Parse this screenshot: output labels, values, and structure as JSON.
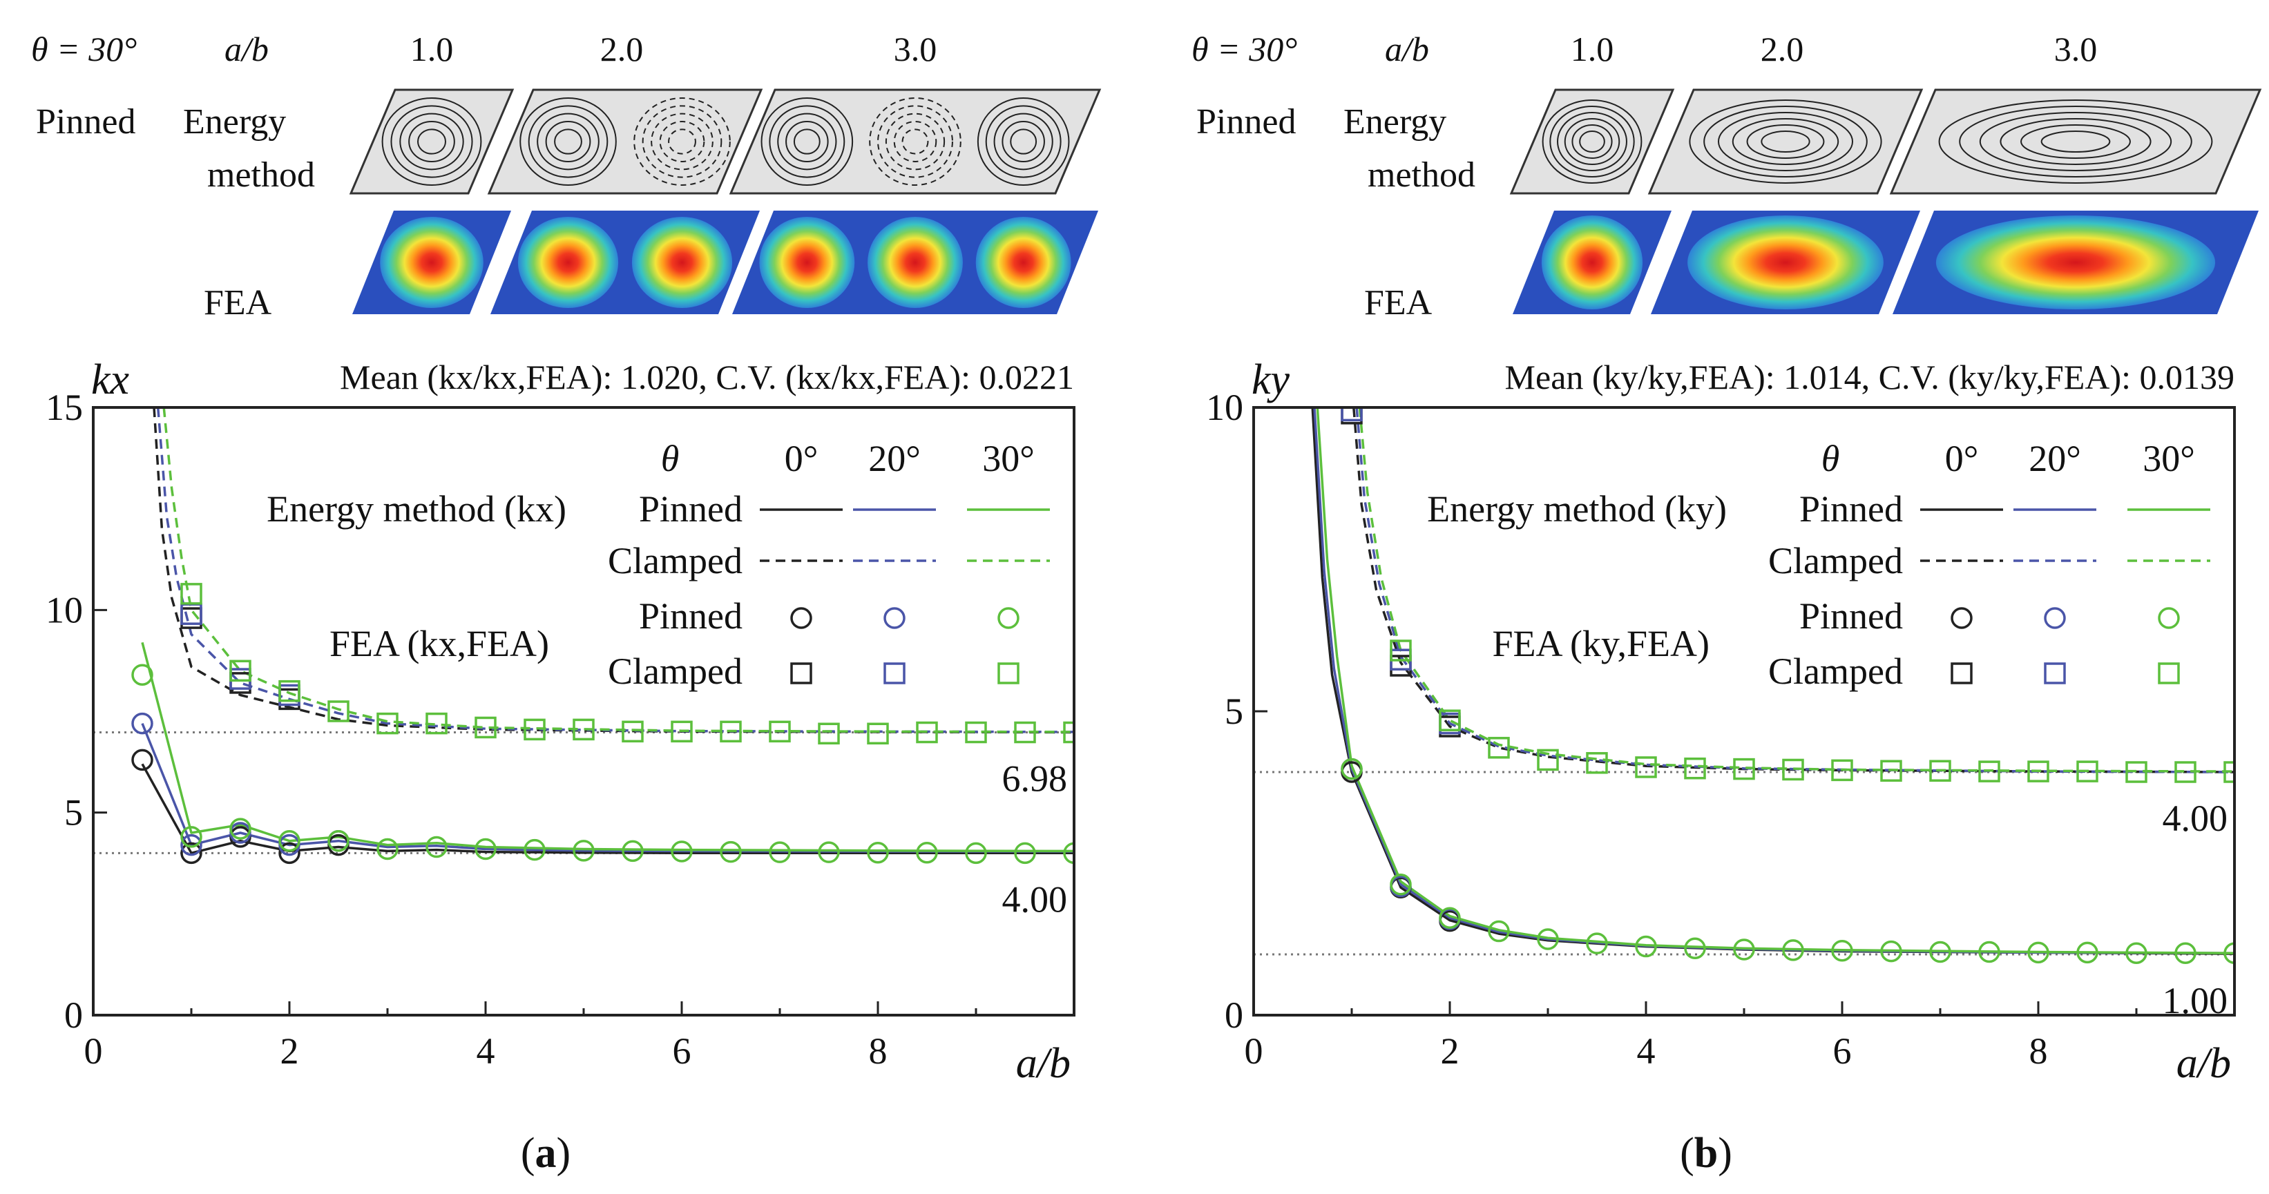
{
  "colors": {
    "theta0": "#222222",
    "theta20": "#4a55a8",
    "theta30": "#5cbf3c",
    "ref_line": "#777777",
    "frame": "#222222"
  },
  "chart_data": [
    {
      "panel_label": "a",
      "type": "line",
      "top_header": {
        "theta_label": "θ = 30°",
        "ab_label": "a/b",
        "ab_values": [
          "1.0",
          "2.0",
          "3.0"
        ],
        "row1_label_a": "Pinned",
        "row1_label_b": "Energy",
        "row1_label_c": "method",
        "row2_label": "FEA",
        "mode_pattern": "alternating"
      },
      "ylabel": "kx",
      "xlabel": "a/b",
      "title": "Mean (kx/kx,FEA): 1.020, C.V. (kx/kx,FEA): 0.0221",
      "xlim": [
        0,
        10
      ],
      "ylim": [
        0,
        15
      ],
      "xticks": [
        "0",
        "2",
        "4",
        "6",
        "8"
      ],
      "yticks": [
        "0",
        "5",
        "10",
        "15"
      ],
      "ref_lines": [
        {
          "value": 6.98,
          "label": "6.98"
        },
        {
          "value": 4.0,
          "label": "4.00"
        }
      ],
      "legend": {
        "theta_header": "θ",
        "angles": [
          "0°",
          "20°",
          "30°"
        ],
        "energy_label": "Energy method (kx)",
        "fea_label": "FEA (kx,FEA)",
        "pinned": "Pinned",
        "clamped": "Clamped"
      },
      "series": [
        {
          "name": "Energy method, Pinned, θ=0°",
          "angle": 0,
          "style": "solid",
          "x": [
            0.5,
            1.0,
            1.5,
            2.0,
            2.5,
            3.0,
            3.5,
            4.0,
            5.0,
            6.0,
            8.0,
            10.0
          ],
          "y": [
            6.2,
            4.0,
            4.3,
            4.05,
            4.15,
            4.05,
            4.08,
            4.03,
            4.01,
            4.0,
            4.0,
            4.0
          ]
        },
        {
          "name": "Energy method, Pinned, θ=20°",
          "angle": 20,
          "style": "solid",
          "x": [
            0.5,
            1.0,
            1.5,
            2.0,
            2.5,
            3.0,
            3.5,
            4.0,
            5.0,
            6.0,
            8.0,
            10.0
          ],
          "y": [
            7.2,
            4.2,
            4.5,
            4.2,
            4.3,
            4.15,
            4.18,
            4.1,
            4.06,
            4.05,
            4.04,
            4.04
          ]
        },
        {
          "name": "Energy method, Pinned, θ=30°",
          "angle": 30,
          "style": "solid",
          "x": [
            0.5,
            1.0,
            1.5,
            2.0,
            2.5,
            3.0,
            3.5,
            4.0,
            5.0,
            6.0,
            8.0,
            10.0
          ],
          "y": [
            9.2,
            4.5,
            4.7,
            4.3,
            4.4,
            4.2,
            4.25,
            4.15,
            4.1,
            4.08,
            4.06,
            4.05
          ]
        },
        {
          "name": "Energy method, Clamped, θ=0°",
          "angle": 0,
          "style": "dashed",
          "x": [
            0.62,
            0.7,
            0.8,
            1.0,
            1.5,
            2.0,
            2.5,
            3.0,
            4.0,
            6.0,
            8.0,
            10.0
          ],
          "y": [
            15,
            12.0,
            10.3,
            8.6,
            7.9,
            7.6,
            7.3,
            7.15,
            7.05,
            7.0,
            6.99,
            6.98
          ]
        },
        {
          "name": "Energy method, Clamped, θ=20°",
          "angle": 20,
          "style": "dashed",
          "x": [
            0.66,
            0.75,
            0.85,
            1.0,
            1.5,
            2.0,
            2.5,
            3.0,
            4.0,
            6.0,
            8.0,
            10.0
          ],
          "y": [
            15,
            12.3,
            10.8,
            9.4,
            8.2,
            7.8,
            7.45,
            7.2,
            7.07,
            7.01,
            7.0,
            6.99
          ]
        },
        {
          "name": "Energy method, Clamped, θ=30°",
          "angle": 30,
          "style": "dashed",
          "x": [
            0.72,
            0.8,
            0.9,
            1.0,
            1.5,
            2.0,
            2.5,
            3.0,
            4.0,
            6.0,
            8.0,
            10.0
          ],
          "y": [
            15,
            13.0,
            11.3,
            10.0,
            8.5,
            7.95,
            7.55,
            7.25,
            7.1,
            7.02,
            7.0,
            6.99
          ]
        },
        {
          "name": "FEA, Pinned, θ=0°",
          "angle": 0,
          "marker": "circle",
          "x": [
            0.5,
            1.0,
            1.5,
            2.0,
            2.5
          ],
          "y": [
            6.3,
            4.0,
            4.4,
            4.0,
            4.2
          ]
        },
        {
          "name": "FEA, Pinned, θ=20°",
          "angle": 20,
          "marker": "circle",
          "x": [
            0.5,
            1.0,
            1.5,
            2.0,
            2.5
          ],
          "y": [
            7.2,
            4.2,
            4.5,
            4.2,
            4.3
          ]
        },
        {
          "name": "FEA, Pinned, θ=30°",
          "angle": 30,
          "marker": "circle",
          "x": [
            0.5,
            1.0,
            1.5,
            2.0,
            2.5,
            3.0,
            3.5,
            4.0,
            4.5,
            5.0,
            5.5,
            6.0,
            6.5,
            7.0,
            7.5,
            8.0,
            8.5,
            9.0,
            9.5,
            10.0
          ],
          "y": [
            8.4,
            4.4,
            4.6,
            4.3,
            4.3,
            4.1,
            4.15,
            4.1,
            4.08,
            4.06,
            4.05,
            4.04,
            4.03,
            4.02,
            4.02,
            4.01,
            4.01,
            4.0,
            4.0,
            4.0
          ]
        },
        {
          "name": "FEA, Clamped, θ=0°",
          "angle": 0,
          "marker": "square",
          "x": [
            1.0,
            1.5,
            2.0
          ],
          "y": [
            9.8,
            8.2,
            7.8
          ]
        },
        {
          "name": "FEA, Clamped, θ=20°",
          "angle": 20,
          "marker": "square",
          "x": [
            1.0,
            1.5,
            2.0
          ],
          "y": [
            9.9,
            8.3,
            7.9
          ]
        },
        {
          "name": "FEA, Clamped, θ=30°",
          "angle": 30,
          "marker": "square",
          "x": [
            1.0,
            1.5,
            2.0,
            2.5,
            3.0,
            3.5,
            4.0,
            4.5,
            5.0,
            5.5,
            6.0,
            6.5,
            7.0,
            7.5,
            8.0,
            8.5,
            9.0,
            9.5,
            10.0
          ],
          "y": [
            10.4,
            8.5,
            8.0,
            7.5,
            7.2,
            7.2,
            7.1,
            7.05,
            7.05,
            7.0,
            7.0,
            7.0,
            7.0,
            6.95,
            6.95,
            6.98,
            6.98,
            6.98,
            6.98
          ]
        }
      ]
    },
    {
      "panel_label": "b",
      "type": "line",
      "top_header": {
        "theta_label": "θ = 30°",
        "ab_label": "a/b",
        "ab_values": [
          "1.0",
          "2.0",
          "3.0"
        ],
        "row1_label_a": "Pinned",
        "row1_label_b": "Energy",
        "row1_label_c": "method",
        "row2_label": "FEA",
        "mode_pattern": "single"
      },
      "ylabel": "ky",
      "xlabel": "a/b",
      "title": "Mean (ky/ky,FEA): 1.014, C.V. (ky/ky,FEA): 0.0139",
      "xlim": [
        0,
        10
      ],
      "ylim": [
        0,
        10
      ],
      "xticks": [
        "0",
        "2",
        "4",
        "6",
        "8"
      ],
      "yticks": [
        "0",
        "5",
        "10"
      ],
      "ref_lines": [
        {
          "value": 4.0,
          "label": "4.00"
        },
        {
          "value": 1.0,
          "label": "1.00"
        }
      ],
      "legend": {
        "theta_header": "θ",
        "angles": [
          "0°",
          "20°",
          "30°"
        ],
        "energy_label": "Energy method (ky)",
        "fea_label": "FEA (ky,FEA)",
        "pinned": "Pinned",
        "clamped": "Clamped"
      },
      "series": [
        {
          "name": "Energy method, Pinned, θ=0°",
          "angle": 0,
          "style": "solid",
          "x": [
            0.6,
            0.7,
            0.8,
            1.0,
            1.5,
            2.0,
            2.5,
            3.0,
            4.0,
            5.0,
            6.0,
            8.0,
            10.0
          ],
          "y": [
            10,
            7.2,
            5.6,
            4.0,
            2.1,
            1.56,
            1.34,
            1.23,
            1.13,
            1.08,
            1.05,
            1.03,
            1.01
          ]
        },
        {
          "name": "Energy method, Pinned, θ=20°",
          "angle": 20,
          "style": "solid",
          "x": [
            0.62,
            0.72,
            0.82,
            1.0,
            1.5,
            2.0,
            2.5,
            3.0,
            4.0,
            5.0,
            6.0,
            8.0,
            10.0
          ],
          "y": [
            10,
            7.3,
            5.7,
            4.05,
            2.15,
            1.6,
            1.37,
            1.25,
            1.14,
            1.09,
            1.06,
            1.03,
            1.02
          ]
        },
        {
          "name": "Energy method, Pinned, θ=30°",
          "angle": 30,
          "style": "solid",
          "x": [
            0.65,
            0.75,
            0.85,
            1.0,
            1.5,
            2.0,
            2.5,
            3.0,
            4.0,
            5.0,
            6.0,
            8.0,
            10.0
          ],
          "y": [
            10,
            7.5,
            5.9,
            4.1,
            2.2,
            1.63,
            1.4,
            1.27,
            1.15,
            1.1,
            1.07,
            1.04,
            1.02
          ]
        },
        {
          "name": "Energy method, Clamped, θ=0°",
          "angle": 0,
          "style": "dashed",
          "x": [
            1.02,
            1.1,
            1.25,
            1.5,
            2.0,
            2.5,
            3.0,
            4.0,
            5.0,
            6.0,
            8.0,
            10.0
          ],
          "y": [
            10,
            8.4,
            7.0,
            5.8,
            4.75,
            4.4,
            4.25,
            4.1,
            4.05,
            4.03,
            4.01,
            4.0
          ]
        },
        {
          "name": "Energy method, Clamped, θ=20°",
          "angle": 20,
          "style": "dashed",
          "x": [
            1.05,
            1.13,
            1.28,
            1.5,
            2.0,
            2.5,
            3.0,
            4.0,
            5.0,
            6.0,
            8.0,
            10.0
          ],
          "y": [
            10,
            8.5,
            7.1,
            5.9,
            4.8,
            4.42,
            4.27,
            4.12,
            4.06,
            4.04,
            4.01,
            4.0
          ]
        },
        {
          "name": "Energy method, Clamped, θ=30°",
          "angle": 30,
          "style": "dashed",
          "x": [
            1.08,
            1.16,
            1.3,
            1.5,
            2.0,
            2.5,
            3.0,
            4.0,
            5.0,
            6.0,
            8.0,
            10.0
          ],
          "y": [
            10,
            8.6,
            7.2,
            6.0,
            4.85,
            4.45,
            4.3,
            4.13,
            4.07,
            4.04,
            4.02,
            4.01
          ]
        },
        {
          "name": "FEA, Pinned, θ=0°",
          "angle": 0,
          "marker": "circle",
          "x": [
            1.0,
            1.5,
            2.0
          ],
          "y": [
            4.0,
            2.1,
            1.55
          ]
        },
        {
          "name": "FEA, Pinned, θ=20°",
          "angle": 20,
          "marker": "circle",
          "x": [
            1.0,
            1.5,
            2.0
          ],
          "y": [
            4.05,
            2.12,
            1.58
          ]
        },
        {
          "name": "FEA, Pinned, θ=30°",
          "angle": 30,
          "marker": "circle",
          "x": [
            1.0,
            1.5,
            2.0,
            2.5,
            3.0,
            3.5,
            4.0,
            4.5,
            5.0,
            5.5,
            6.0,
            6.5,
            7.0,
            7.5,
            8.0,
            8.5,
            9.0,
            9.5,
            10.0
          ],
          "y": [
            4.05,
            2.15,
            1.6,
            1.38,
            1.25,
            1.18,
            1.13,
            1.1,
            1.08,
            1.07,
            1.06,
            1.05,
            1.04,
            1.04,
            1.03,
            1.03,
            1.02,
            1.02,
            1.02
          ]
        },
        {
          "name": "FEA, Clamped, θ=0°",
          "angle": 0,
          "marker": "square",
          "x": [
            1.0,
            1.5,
            2.0
          ],
          "y": [
            9.9,
            5.75,
            4.75
          ]
        },
        {
          "name": "FEA, Clamped, θ=20°",
          "angle": 20,
          "marker": "square",
          "x": [
            1.0,
            1.5,
            2.0
          ],
          "y": [
            9.95,
            5.85,
            4.8
          ]
        },
        {
          "name": "FEA, Clamped, θ=30°",
          "angle": 30,
          "marker": "square",
          "x": [
            1.5,
            2.0,
            2.5,
            3.0,
            3.5,
            4.0,
            4.5,
            5.0,
            5.5,
            6.0,
            6.5,
            7.0,
            7.5,
            8.0,
            8.5,
            9.0,
            9.5,
            10.0
          ],
          "y": [
            6.0,
            4.85,
            4.4,
            4.2,
            4.15,
            4.08,
            4.06,
            4.05,
            4.04,
            4.03,
            4.02,
            4.02,
            4.01,
            4.01,
            4.01,
            4.0,
            4.0,
            4.0
          ]
        }
      ]
    }
  ]
}
